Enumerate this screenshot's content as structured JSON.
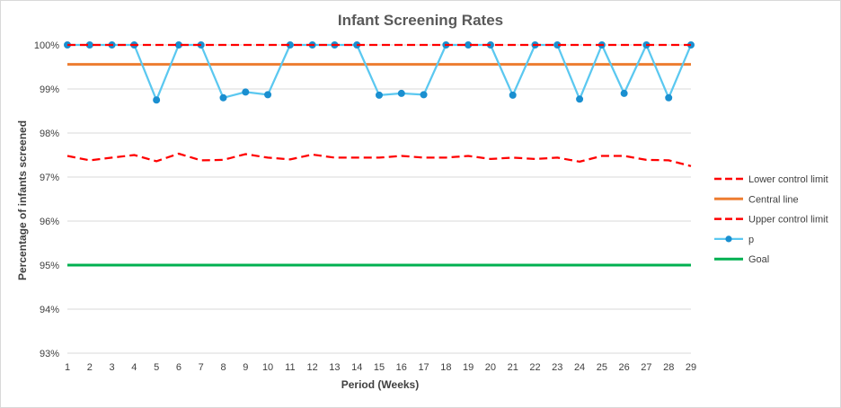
{
  "chart_data": {
    "type": "line",
    "title": "Infant Screening Rates",
    "xlabel": "Period (Weeks)",
    "ylabel": "Percentage of infants screened",
    "x": [
      1,
      2,
      3,
      4,
      5,
      6,
      7,
      8,
      9,
      10,
      11,
      12,
      13,
      14,
      15,
      16,
      17,
      18,
      19,
      20,
      21,
      22,
      23,
      24,
      25,
      26,
      27,
      28,
      29
    ],
    "ylim": [
      93,
      100
    ],
    "yticks": [
      93,
      94,
      95,
      96,
      97,
      98,
      99,
      100
    ],
    "ytick_labels": [
      "93%",
      "94%",
      "95%",
      "96%",
      "97%",
      "98%",
      "99%",
      "100%"
    ],
    "grid": "horizontal",
    "legend_position": "right",
    "series": [
      {
        "name": "Lower control limit",
        "color": "#ff0000",
        "style": "dashed",
        "values": [
          97.48,
          97.38,
          97.44,
          97.5,
          97.36,
          97.53,
          97.38,
          97.39,
          97.52,
          97.44,
          97.4,
          97.51,
          97.44,
          97.44,
          97.44,
          97.48,
          97.44,
          97.44,
          97.48,
          97.41,
          97.44,
          97.41,
          97.44,
          97.35,
          97.48,
          97.48,
          97.39,
          97.38,
          97.25
        ]
      },
      {
        "name": "Central line",
        "color": "#ed7d31",
        "style": "solid",
        "values": [
          99.56,
          99.56,
          99.56,
          99.56,
          99.56,
          99.56,
          99.56,
          99.56,
          99.56,
          99.56,
          99.56,
          99.56,
          99.56,
          99.56,
          99.56,
          99.56,
          99.56,
          99.56,
          99.56,
          99.56,
          99.56,
          99.56,
          99.56,
          99.56,
          99.56,
          99.56,
          99.56,
          99.56,
          99.56
        ]
      },
      {
        "name": "Upper control limit",
        "color": "#ff0000",
        "style": "dashed",
        "values": [
          100,
          100,
          100,
          100,
          100,
          100,
          100,
          100,
          100,
          100,
          100,
          100,
          100,
          100,
          100,
          100,
          100,
          100,
          100,
          100,
          100,
          100,
          100,
          100,
          100,
          100,
          100,
          100,
          100
        ]
      },
      {
        "name": "p",
        "color": "#5bc8f0",
        "style": "solid-markers",
        "values": [
          100,
          100,
          100,
          100,
          98.75,
          100,
          100,
          98.8,
          98.93,
          98.87,
          100,
          100,
          100,
          100,
          98.86,
          98.9,
          98.87,
          100,
          100,
          100,
          98.86,
          100,
          100,
          98.77,
          100,
          98.9,
          100,
          98.8,
          100
        ]
      },
      {
        "name": "Goal",
        "color": "#00b050",
        "style": "solid",
        "values": [
          95,
          95,
          95,
          95,
          95,
          95,
          95,
          95,
          95,
          95,
          95,
          95,
          95,
          95,
          95,
          95,
          95,
          95,
          95,
          95,
          95,
          95,
          95,
          95,
          95,
          95,
          95,
          95,
          95
        ]
      }
    ]
  }
}
